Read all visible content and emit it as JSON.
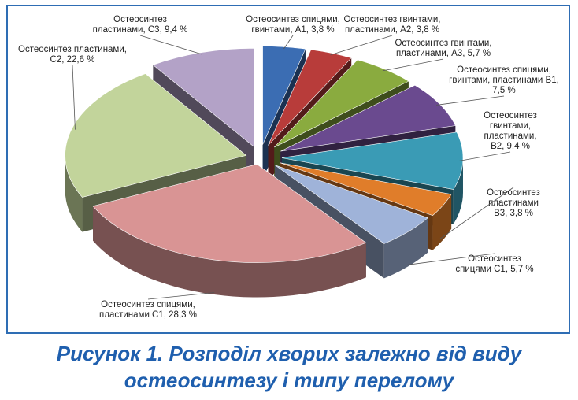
{
  "figure": {
    "caption_line1": "Рисунок 1. Розподіл хворих залежно від виду",
    "caption_line2": "остеосинтезу і типу перелому"
  },
  "chart_data": {
    "type": "pie",
    "variant": "3d-exploded",
    "unit": "%",
    "slices": [
      {
        "label_lines": [
          "Остеосинтез спицями,",
          "гвинтами, А1, 3,8 %"
        ],
        "value": 3.8,
        "color": "#3b6db3"
      },
      {
        "label_lines": [
          "Остеосинтез гвинтами,",
          "пластинами, А2, 3,8 %"
        ],
        "value": 3.8,
        "color": "#b83c3a"
      },
      {
        "label_lines": [
          "Остеосинтез гвинтами,",
          "пластинами, А3, 5,7 %"
        ],
        "value": 5.7,
        "color": "#8aab3f"
      },
      {
        "label_lines": [
          "Остеосинтез спицями,",
          "гвинтами, пластинами В1,",
          "7,5 %"
        ],
        "value": 7.5,
        "color": "#6a4a8f"
      },
      {
        "label_lines": [
          "Остеосинтез",
          "гвинтами,",
          "пластинами,",
          "В2, 9,4 %"
        ],
        "value": 9.4,
        "color": "#3a9bb5"
      },
      {
        "label_lines": [
          "Остеосинтез",
          "пластинами",
          "В3, 3,8 %"
        ],
        "value": 3.8,
        "color": "#e07d2a"
      },
      {
        "label_lines": [
          "Остеосинтез",
          "спицями С1, 5,7 %"
        ],
        "value": 5.7,
        "color": "#9fb3d9"
      },
      {
        "label_lines": [
          "Остеосинтез спицями,",
          "пластинами С1, 28,3 %"
        ],
        "value": 28.3,
        "color": "#d99494"
      },
      {
        "label_lines": [
          "Остеосинтез пластинами,",
          "С2, 22,6 %"
        ],
        "value": 22.6,
        "color": "#c2d49b"
      },
      {
        "label_lines": [
          "Остеосинтез",
          "пластинами, С3, 9,4 %"
        ],
        "value": 9.4,
        "color": "#b3a2c7"
      }
    ]
  }
}
